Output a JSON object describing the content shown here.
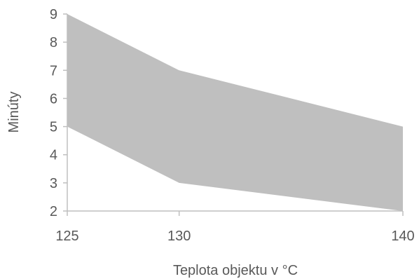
{
  "chart_data": {
    "type": "area",
    "x": [
      125,
      130,
      140
    ],
    "series": [
      {
        "values": [
          5,
          3,
          2
        ]
      },
      {
        "values": [
          9,
          7,
          5
        ]
      }
    ],
    "fill_color": "#bfbfbf",
    "axis_color": "#bfbfbf",
    "text_color": "#595959",
    "xlabel": "Teplota objektu v °C",
    "ylabel": "Minúty",
    "xlim": [
      125,
      140
    ],
    "ylim": [
      2,
      9
    ],
    "x_ticks": [
      "125",
      "130",
      "140"
    ],
    "y_ticks": [
      "2",
      "3",
      "4",
      "5",
      "6",
      "7",
      "8",
      "9"
    ],
    "grid": false
  }
}
